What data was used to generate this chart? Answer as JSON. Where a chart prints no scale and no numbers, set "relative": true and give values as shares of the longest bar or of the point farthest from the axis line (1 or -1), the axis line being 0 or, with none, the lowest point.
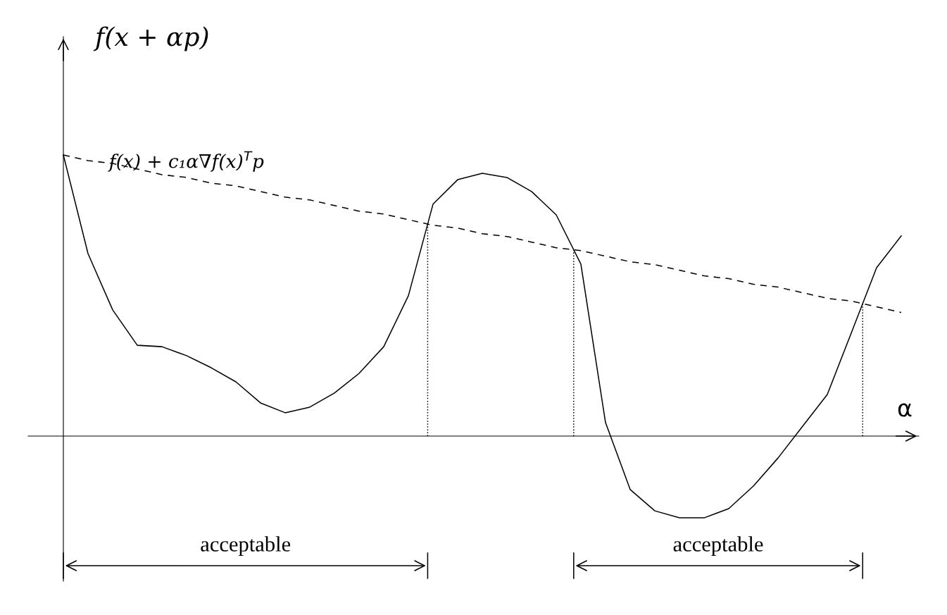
{
  "chart_data": {
    "type": "line",
    "relative": true,
    "ylabel": "f(x + αp)",
    "xlabel": "α",
    "categories": [
      null,
      null,
      null,
      null,
      null,
      null,
      null,
      null,
      null,
      null,
      null,
      null,
      null,
      null,
      null,
      null,
      null,
      null,
      null,
      null,
      null,
      null,
      null,
      null,
      null,
      null,
      null,
      null,
      null,
      null,
      null,
      null,
      null,
      null,
      null
    ],
    "series": [
      {
        "color": "#000000",
        "line_style": "solid",
        "values": [
          1.0,
          0.649,
          0.449,
          0.323,
          0.318,
          0.286,
          0.243,
          0.193,
          0.118,
          0.083,
          0.103,
          0.153,
          0.223,
          0.318,
          0.499,
          0.825,
          0.912,
          0.935,
          0.92,
          0.87,
          0.787,
          0.612,
          0.048,
          -0.19,
          -0.266,
          -0.291,
          -0.291,
          -0.258,
          -0.178,
          -0.078,
          0.035,
          0.148,
          0.373,
          0.599,
          0.712
        ]
      },
      {
        "name": "f(x) + c₁α∇f(x)$^{T}$p",
        "color": "#000000",
        "line_style": "dashed",
        "values": [
          1.0,
          0.98,
          0.97,
          0.95,
          0.93,
          0.92,
          0.9,
          0.89,
          0.87,
          0.85,
          0.84,
          0.82,
          0.8,
          0.79,
          0.77,
          0.75,
          0.74,
          0.72,
          0.71,
          0.69,
          0.67,
          0.66,
          0.64,
          0.62,
          0.61,
          0.59,
          0.57,
          0.56,
          0.54,
          0.53,
          0.51,
          0.49,
          0.48,
          0.46,
          0.44
        ]
      }
    ],
    "annotations": [
      "acceptable",
      "acceptable"
    ],
    "grid": false,
    "legend": false,
    "marker": "none"
  }
}
